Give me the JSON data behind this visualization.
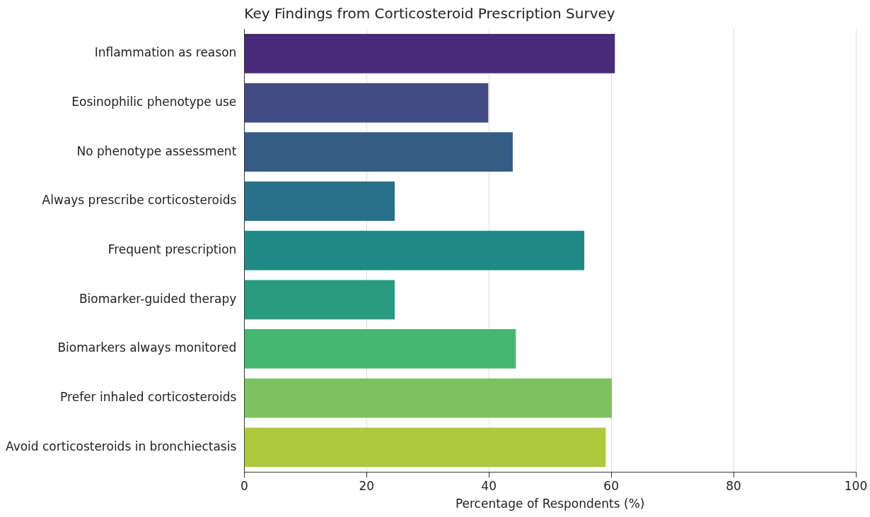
{
  "chart_data": {
    "type": "bar",
    "orientation": "horizontal",
    "title": "Key Findings from Corticosteroid Prescription Survey",
    "xlabel": "Percentage of Respondents (%)",
    "categories": [
      "Inflammation as reason",
      "Eosinophilic phenotype use",
      "No phenotype assessment",
      "Always prescribe corticosteroids",
      "Frequent prescription",
      "Biomarker-guided therapy",
      "Biomarkers always monitored",
      "Prefer inhaled corticosteroids",
      "Avoid corticosteroids in bronchiectasis"
    ],
    "values": [
      60.6,
      39.9,
      43.9,
      24.6,
      55.6,
      24.6,
      44.4,
      60.1,
      59.1
    ],
    "colors": [
      "#472a7a",
      "#424b84",
      "#365c86",
      "#27718a",
      "#1f8a83",
      "#2a9b7e",
      "#47b673",
      "#7cc263",
      "#aec93e"
    ],
    "xlim": [
      0,
      100
    ],
    "xticks": [
      0,
      20,
      40,
      60,
      80,
      100
    ],
    "grid": "x",
    "legend": false
  }
}
